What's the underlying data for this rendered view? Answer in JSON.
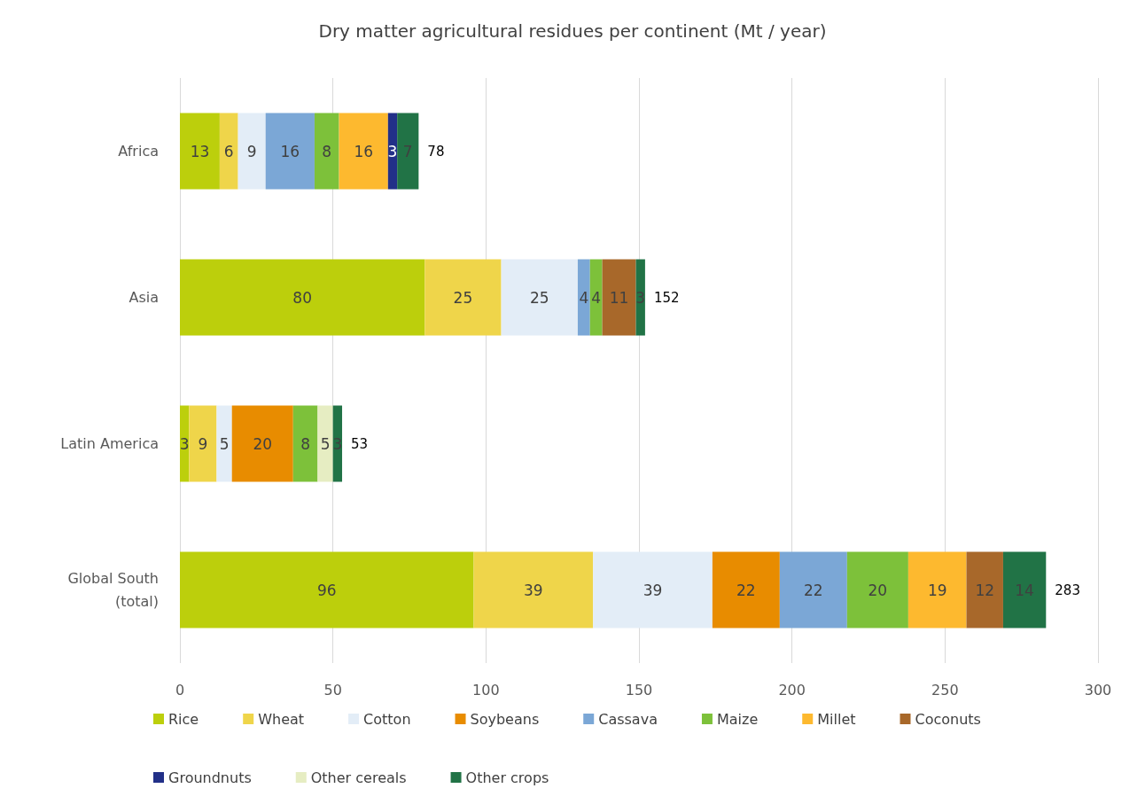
{
  "chart_data": {
    "type": "bar",
    "title": "Dry matter agricultural residues per continent (Mt / year)",
    "orientation": "horizontal",
    "stacked": true,
    "categories": [
      "Africa",
      "Asia",
      "Latin America",
      "Global South\n(total)"
    ],
    "series": [
      {
        "name": "Rice",
        "color": "#bccf0c",
        "values": [
          13,
          80,
          3,
          96
        ]
      },
      {
        "name": "Wheat",
        "color": "#efd54a",
        "values": [
          6,
          25,
          9,
          39
        ]
      },
      {
        "name": "Cotton",
        "color": "#e3edf7",
        "values": [
          9,
          25,
          5,
          39
        ]
      },
      {
        "name": "Soybeans",
        "color": "#e88c00",
        "values": [
          null,
          null,
          20,
          22
        ]
      },
      {
        "name": "Cassava",
        "color": "#7ba7d6",
        "values": [
          16,
          4,
          null,
          22
        ]
      },
      {
        "name": "Maize",
        "color": "#7dc13a",
        "values": [
          8,
          4,
          8,
          20
        ]
      },
      {
        "name": "Millet",
        "color": "#fdb92f",
        "values": [
          16,
          null,
          null,
          19
        ]
      },
      {
        "name": "Coconuts",
        "color": "#a8682a",
        "values": [
          null,
          11,
          null,
          12
        ]
      },
      {
        "name": "Groundnuts",
        "color": "#223088",
        "values": [
          3,
          null,
          null,
          null
        ]
      },
      {
        "name": "Other cereals",
        "color": "#e6edc2",
        "values": [
          null,
          null,
          5,
          null
        ]
      },
      {
        "name": "Other crops",
        "color": "#217346",
        "values": [
          7,
          3,
          3,
          14
        ]
      }
    ],
    "totals": [
      "78",
      "152",
      "53",
      "283"
    ],
    "data_labels": true,
    "xlim": [
      0,
      300
    ],
    "xticks": [
      0,
      50,
      100,
      150,
      200,
      250,
      300
    ],
    "grid": "x",
    "legend": "bottom"
  }
}
